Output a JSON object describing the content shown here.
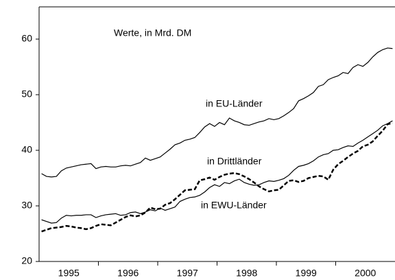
{
  "chart_data": {
    "type": "line",
    "annotation": "Werte, in Mrd. DM",
    "categories": [
      null,
      null,
      null,
      null,
      null,
      "1995",
      null,
      null,
      null,
      null,
      null,
      null,
      null,
      null,
      null,
      null,
      null,
      "1996",
      null,
      null,
      null,
      null,
      null,
      null,
      null,
      null,
      null,
      null,
      null,
      "1997",
      null,
      null,
      null,
      null,
      null,
      null,
      null,
      null,
      null,
      null,
      null,
      "1998",
      null,
      null,
      null,
      null,
      null,
      null,
      null,
      null,
      null,
      null,
      null,
      "1999",
      null,
      null,
      null,
      null,
      null,
      null,
      null,
      null,
      null,
      null,
      null,
      "2000",
      null,
      null,
      null,
      null,
      null,
      null
    ],
    "series": [
      {
        "name": "in EU-Länder",
        "color": "#000000",
        "dash": false,
        "values": [
          35.8,
          35.3,
          35.2,
          35.3,
          36.3,
          36.8,
          37.0,
          37.2,
          37.4,
          37.5,
          37.6,
          36.7,
          37.0,
          37.1,
          37.0,
          37.0,
          37.2,
          37.3,
          37.2,
          37.5,
          37.8,
          38.6,
          38.2,
          38.5,
          38.8,
          39.5,
          40.2,
          41.0,
          41.3,
          41.8,
          42.0,
          42.3,
          43.2,
          44.2,
          44.8,
          44.3,
          45.0,
          44.6,
          45.8,
          45.3,
          45.0,
          44.6,
          44.5,
          44.8,
          45.1,
          45.3,
          45.7,
          45.5,
          45.7,
          46.2,
          46.8,
          47.5,
          48.9,
          49.3,
          49.8,
          50.4,
          51.5,
          51.8,
          52.7,
          53.1,
          53.4,
          54.0,
          53.8,
          54.9,
          55.4,
          55.1,
          55.8,
          56.8,
          57.6,
          58.1,
          58.4,
          58.3
        ]
      },
      {
        "name": "in Drittländer",
        "color": "#000000",
        "dash": true,
        "values": [
          25.4,
          25.7,
          26.0,
          26.1,
          26.2,
          26.4,
          26.3,
          26.1,
          26.0,
          25.8,
          26.0,
          26.4,
          26.7,
          26.6,
          26.5,
          27.0,
          27.5,
          28.0,
          28.3,
          28.1,
          28.3,
          28.8,
          29.7,
          29.4,
          29.5,
          30.2,
          30.5,
          31.2,
          32.0,
          32.8,
          32.9,
          33.0,
          34.6,
          34.8,
          35.1,
          34.7,
          35.2,
          35.6,
          35.8,
          35.9,
          35.7,
          35.3,
          34.8,
          34.2,
          33.5,
          33.0,
          32.6,
          32.8,
          32.9,
          33.7,
          34.5,
          34.6,
          34.3,
          34.5,
          35.0,
          35.2,
          35.4,
          35.3,
          34.7,
          36.5,
          37.5,
          38.1,
          38.8,
          39.4,
          39.9,
          40.7,
          41.0,
          41.6,
          42.6,
          43.5,
          44.7,
          44.9
        ]
      },
      {
        "name": "in EWU-Länder",
        "color": "#000000",
        "dash": false,
        "values": [
          27.5,
          27.2,
          26.9,
          27.0,
          27.8,
          28.3,
          28.2,
          28.3,
          28.3,
          28.4,
          28.4,
          27.9,
          28.2,
          28.4,
          28.5,
          28.6,
          28.3,
          28.4,
          28.8,
          28.9,
          28.6,
          28.9,
          29.3,
          29.1,
          29.6,
          29.2,
          29.5,
          29.8,
          30.8,
          31.2,
          31.5,
          31.6,
          31.9,
          32.5,
          33.3,
          33.8,
          33.5,
          34.2,
          34.0,
          34.5,
          34.8,
          34.2,
          33.9,
          33.7,
          33.8,
          34.2,
          34.5,
          34.4,
          34.6,
          34.9,
          35.5,
          36.4,
          37.1,
          37.3,
          37.6,
          38.1,
          38.8,
          39.2,
          39.4,
          40.0,
          40.1,
          40.5,
          40.8,
          40.7,
          41.3,
          41.8,
          42.4,
          43.0,
          43.6,
          44.4,
          44.8,
          45.3
        ]
      }
    ],
    "ylim": [
      20,
      65.8
    ],
    "yticks": [
      20,
      30,
      40,
      50,
      60
    ]
  }
}
